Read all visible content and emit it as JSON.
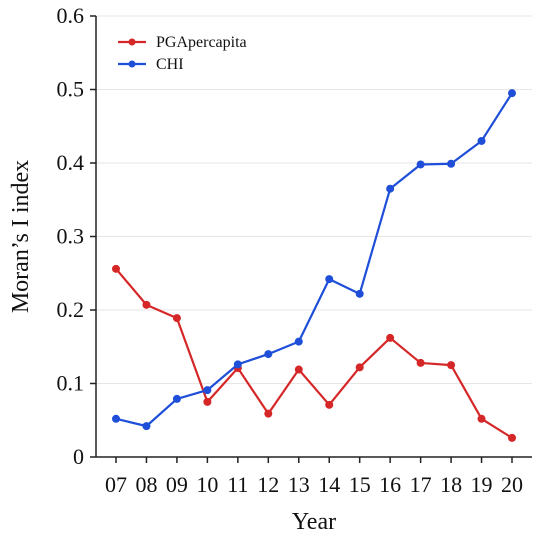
{
  "chart_data": {
    "type": "line",
    "xlabel": "Year",
    "ylabel": "Moran’s I index",
    "categories": [
      "07",
      "08",
      "09",
      "10",
      "11",
      "12",
      "13",
      "14",
      "15",
      "16",
      "17",
      "18",
      "19",
      "20"
    ],
    "ylim": [
      0,
      0.6
    ],
    "yticks": [
      "0",
      "0.1",
      "0.2",
      "0.3",
      "0.4",
      "0.5",
      "0.6"
    ],
    "grid": true,
    "legend_position": "top-left",
    "series": [
      {
        "name": "PGApercapita",
        "color": "#d62728",
        "values": [
          0.256,
          0.207,
          0.189,
          0.075,
          0.121,
          0.059,
          0.119,
          0.071,
          0.122,
          0.162,
          0.128,
          0.125,
          0.052,
          0.026
        ]
      },
      {
        "name": "CHI",
        "color": "#1f4fd8",
        "values": [
          0.052,
          0.042,
          0.079,
          0.091,
          0.126,
          0.14,
          0.157,
          0.242,
          0.222,
          0.365,
          0.398,
          0.399,
          0.43,
          0.495
        ]
      }
    ]
  }
}
